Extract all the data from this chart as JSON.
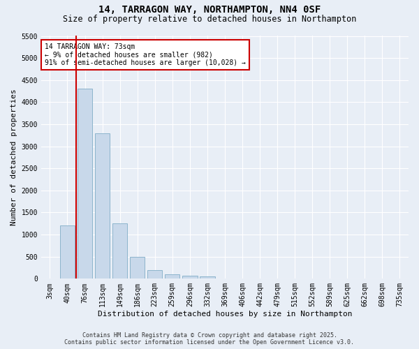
{
  "title": "14, TARRAGON WAY, NORTHAMPTON, NN4 0SF",
  "subtitle": "Size of property relative to detached houses in Northampton",
  "xlabel": "Distribution of detached houses by size in Northampton",
  "ylabel": "Number of detached properties",
  "categories": [
    "3sqm",
    "40sqm",
    "76sqm",
    "113sqm",
    "149sqm",
    "186sqm",
    "223sqm",
    "259sqm",
    "296sqm",
    "332sqm",
    "369sqm",
    "406sqm",
    "442sqm",
    "479sqm",
    "515sqm",
    "552sqm",
    "589sqm",
    "625sqm",
    "662sqm",
    "698sqm",
    "735sqm"
  ],
  "values": [
    0,
    1200,
    4300,
    3300,
    1250,
    500,
    200,
    100,
    75,
    50,
    0,
    0,
    0,
    0,
    0,
    0,
    0,
    0,
    0,
    0,
    0
  ],
  "bar_color": "#c8d8ea",
  "bar_edge_color": "#8cb4cc",
  "vline_color": "#cc0000",
  "vline_x_index": 1.5,
  "annotation_text": "14 TARRAGON WAY: 73sqm\n← 9% of detached houses are smaller (982)\n91% of semi-detached houses are larger (10,028) →",
  "annotation_box_edgecolor": "#cc0000",
  "annotation_box_facecolor": "#ffffff",
  "ylim": [
    0,
    5500
  ],
  "yticks": [
    0,
    500,
    1000,
    1500,
    2000,
    2500,
    3000,
    3500,
    4000,
    4500,
    5000,
    5500
  ],
  "footer_line1": "Contains HM Land Registry data © Crown copyright and database right 2025.",
  "footer_line2": "Contains public sector information licensed under the Open Government Licence v3.0.",
  "bg_color": "#e8eef6",
  "plot_bg_color": "#e8eef6",
  "grid_color": "#ffffff",
  "title_fontsize": 10,
  "subtitle_fontsize": 8.5,
  "tick_fontsize": 7,
  "ylabel_fontsize": 8,
  "xlabel_fontsize": 8,
  "annotation_fontsize": 7,
  "footer_fontsize": 6
}
